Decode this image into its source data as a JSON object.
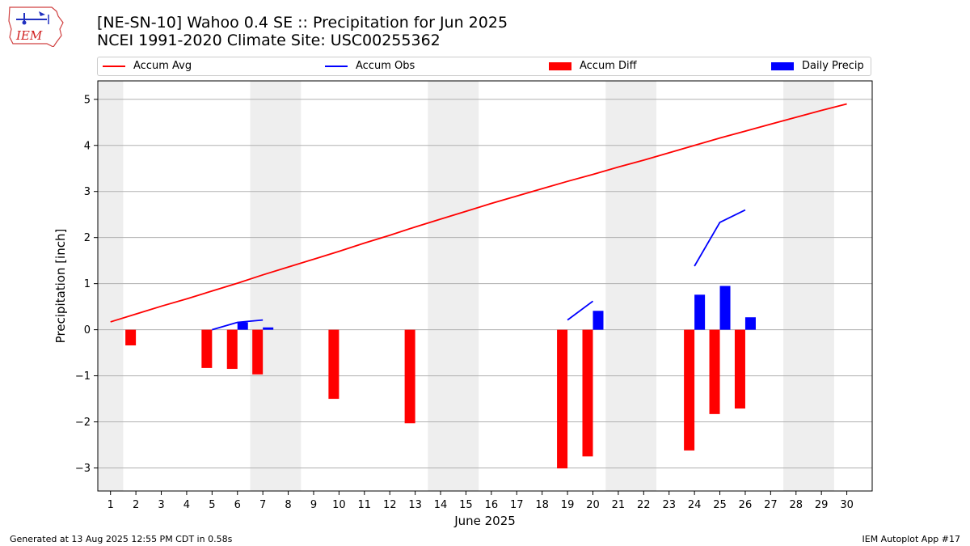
{
  "header": {
    "title_line1": "[NE-SN-10] Wahoo 0.4 SE :: Precipitation for Jun 2025",
    "title_line2": "NCEI 1991-2020 Climate Site: USC00255362",
    "logo_text": "IEM"
  },
  "footer": {
    "left": "Generated at 13 Aug 2025 12:55 PM CDT in 0.58s",
    "right": "IEM Autoplot App #17"
  },
  "chart_data": {
    "type": "bar",
    "xlabel": "June 2025",
    "ylabel": "Precipitation [inch]",
    "xlim": [
      0.5,
      31
    ],
    "ylim": [
      -3.5,
      5.4
    ],
    "x_ticks": [
      1,
      2,
      3,
      4,
      5,
      6,
      7,
      8,
      9,
      10,
      11,
      12,
      13,
      14,
      15,
      16,
      17,
      18,
      19,
      20,
      21,
      22,
      23,
      24,
      25,
      26,
      27,
      28,
      29,
      30
    ],
    "y_ticks": [
      -3,
      -2,
      -1,
      0,
      1,
      2,
      3,
      4,
      5
    ],
    "y_tick_labels": [
      "−3",
      "−2",
      "−1",
      "0",
      "1",
      "2",
      "3",
      "4",
      "5"
    ],
    "grid": "horizontal",
    "legend_position": "top",
    "weekend_shading": [
      [
        0.5,
        1.5
      ],
      [
        6.5,
        8.5
      ],
      [
        13.5,
        15.5
      ],
      [
        20.5,
        22.5
      ],
      [
        27.5,
        29.5
      ]
    ],
    "colors": {
      "accum_avg": "#ff0000",
      "accum_obs": "#0000ff",
      "accum_diff": "#ff0000",
      "daily_precip": "#0000ff",
      "weekend": "#eeeeee",
      "grid": "#b0b0b0"
    },
    "legend": {
      "accum_avg": "Accum Avg",
      "accum_obs": "Accum Obs",
      "accum_diff": "Accum Diff",
      "daily_precip": "Daily Precip"
    },
    "accum_avg": {
      "x": [
        1,
        2,
        3,
        4,
        5,
        6,
        7,
        8,
        9,
        10,
        11,
        12,
        13,
        14,
        15,
        16,
        17,
        18,
        19,
        20,
        21,
        22,
        23,
        24,
        25,
        26,
        27,
        28,
        29,
        30
      ],
      "values": [
        0.17,
        0.34,
        0.51,
        0.67,
        0.84,
        1.01,
        1.19,
        1.36,
        1.53,
        1.7,
        1.88,
        2.05,
        2.23,
        2.4,
        2.57,
        2.74,
        2.9,
        3.06,
        3.22,
        3.37,
        3.53,
        3.68,
        3.84,
        4.0,
        4.16,
        4.31,
        4.46,
        4.61,
        4.76,
        4.9
      ]
    },
    "accum_obs_segments": [
      {
        "x": [
          5,
          6,
          7
        ],
        "values": [
          0.0,
          0.16,
          0.21
        ]
      },
      {
        "x": [
          19,
          20
        ],
        "values": [
          0.21,
          0.62
        ]
      },
      {
        "x": [
          24,
          25,
          26
        ],
        "values": [
          1.38,
          2.33,
          2.6
        ]
      }
    ],
    "accum_diff": {
      "x": [
        2,
        5,
        6,
        7,
        10,
        13,
        19,
        20,
        24,
        25,
        26
      ],
      "values": [
        -0.34,
        -0.83,
        -0.85,
        -0.97,
        -1.5,
        -2.03,
        -3.01,
        -2.75,
        -2.62,
        -1.83,
        -1.71
      ]
    },
    "daily_precip": {
      "x": [
        6,
        7,
        20,
        24,
        25,
        26
      ],
      "values": [
        0.16,
        0.05,
        0.41,
        0.76,
        0.95,
        0.27
      ]
    }
  }
}
